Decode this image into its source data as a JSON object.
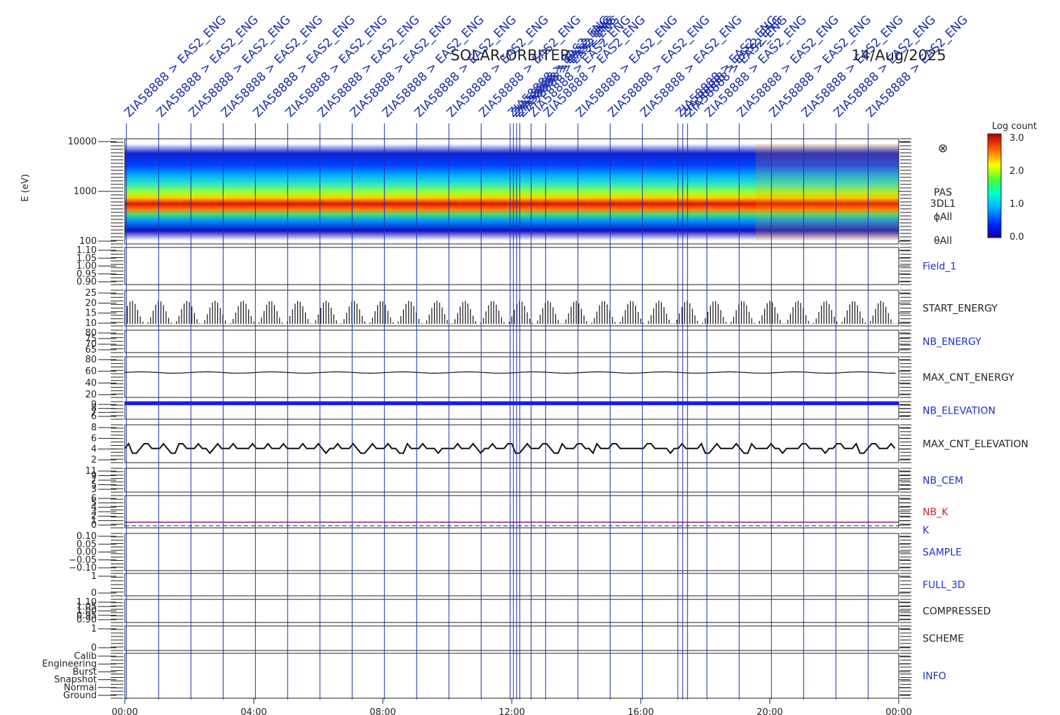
{
  "header": {
    "mission": "SOLAR-ORBITER",
    "date": "14/Aug/2025"
  },
  "colorbar": {
    "title": "Log count",
    "ticks": [
      "3.0",
      "2.0",
      "1.0",
      "0.0"
    ]
  },
  "spectrogram_labels": {
    "ylabel": "E (eV)",
    "instrument": "PAS",
    "product": "3DL1",
    "phi": "ϕAll",
    "theta": "θAll",
    "symbol": "⊗"
  },
  "event_label_text": "ZIA58888 > EAS2_ENG",
  "colors": {
    "event_line": "#1a2fb0",
    "panel_label_blue": "#1f2fd0",
    "panel_label_red": "#cc2222",
    "nb_elevation": "#1a1aff",
    "k_line": "#8a1a7a"
  },
  "chart_data": {
    "type": "multi-panel time series",
    "x_ticks": [
      "00:00",
      "04:00",
      "08:00",
      "12:00",
      "16:00",
      "20:00",
      "00:00"
    ],
    "x_range_hours": [
      0,
      24
    ],
    "event_times_hours": [
      0.05,
      1.05,
      2.05,
      3.05,
      4.05,
      5.05,
      6.05,
      7.05,
      8.05,
      9.05,
      10.05,
      11.05,
      11.95,
      12.05,
      12.15,
      12.25,
      12.6,
      13.05,
      14.05,
      15.05,
      16.05,
      17.15,
      17.3,
      17.45,
      18.05,
      19.05,
      20.05,
      21.05,
      22.05,
      23.05
    ],
    "panels": [
      {
        "name": "E (eV)",
        "ticks": [
          "10000",
          "1000",
          "100"
        ]
      },
      {
        "name": "Field_1",
        "label_color": "blue",
        "ticks": [
          "1.10",
          "1.05",
          "1.00",
          "0.95",
          "0.90"
        ]
      },
      {
        "name": "START_ENERGY",
        "label_color": "black",
        "ticks": [
          "25",
          "20",
          "15",
          "10"
        ],
        "typical_range": [
          10,
          21
        ]
      },
      {
        "name": "NB_ENERGY",
        "label_color": "blue",
        "ticks": [
          "80",
          "75",
          "70",
          "65"
        ]
      },
      {
        "name": "MAX_CNT_ENERGY",
        "label_color": "black",
        "ticks": [
          "80",
          "60",
          "40",
          "20"
        ],
        "typical_value": 56
      },
      {
        "name": "NB_ELEVATION",
        "label_color": "blue",
        "ticks": [
          "9",
          "8",
          "7",
          "6"
        ],
        "typical_value": 9
      },
      {
        "name": "MAX_CNT_ELEVATION",
        "label_color": "black",
        "ticks": [
          "8",
          "6",
          "4",
          "2"
        ],
        "typical_value": 4
      },
      {
        "name": "NB_CEM",
        "label_color": "blue",
        "ticks": [
          "11",
          "9",
          "7",
          "5",
          "3"
        ]
      },
      {
        "name": "NB_K",
        "label_color": "red",
        "extra_label": "K",
        "ticks": [
          "6",
          "5",
          "4",
          "3",
          "2",
          "1",
          "0"
        ]
      },
      {
        "name": "SAMPLE",
        "label_color": "blue",
        "ticks": [
          "0.10",
          "0.05",
          "0.00",
          "−0.05",
          "−0.10"
        ]
      },
      {
        "name": "FULL_3D",
        "label_color": "blue",
        "ticks": [
          "1",
          "0"
        ]
      },
      {
        "name": "COMPRESSED",
        "label_color": "black",
        "ticks": [
          "1.10",
          "1.05",
          "1.00",
          "0.95",
          "0.90"
        ]
      },
      {
        "name": "SCHEME",
        "label_color": "black",
        "ticks": [
          "1",
          "0"
        ]
      },
      {
        "name": "INFO",
        "label_color": "blue",
        "ticks": [
          "Calib",
          "Engineering",
          "Burst",
          "Snapshot",
          "Normal",
          "Ground"
        ]
      }
    ]
  }
}
